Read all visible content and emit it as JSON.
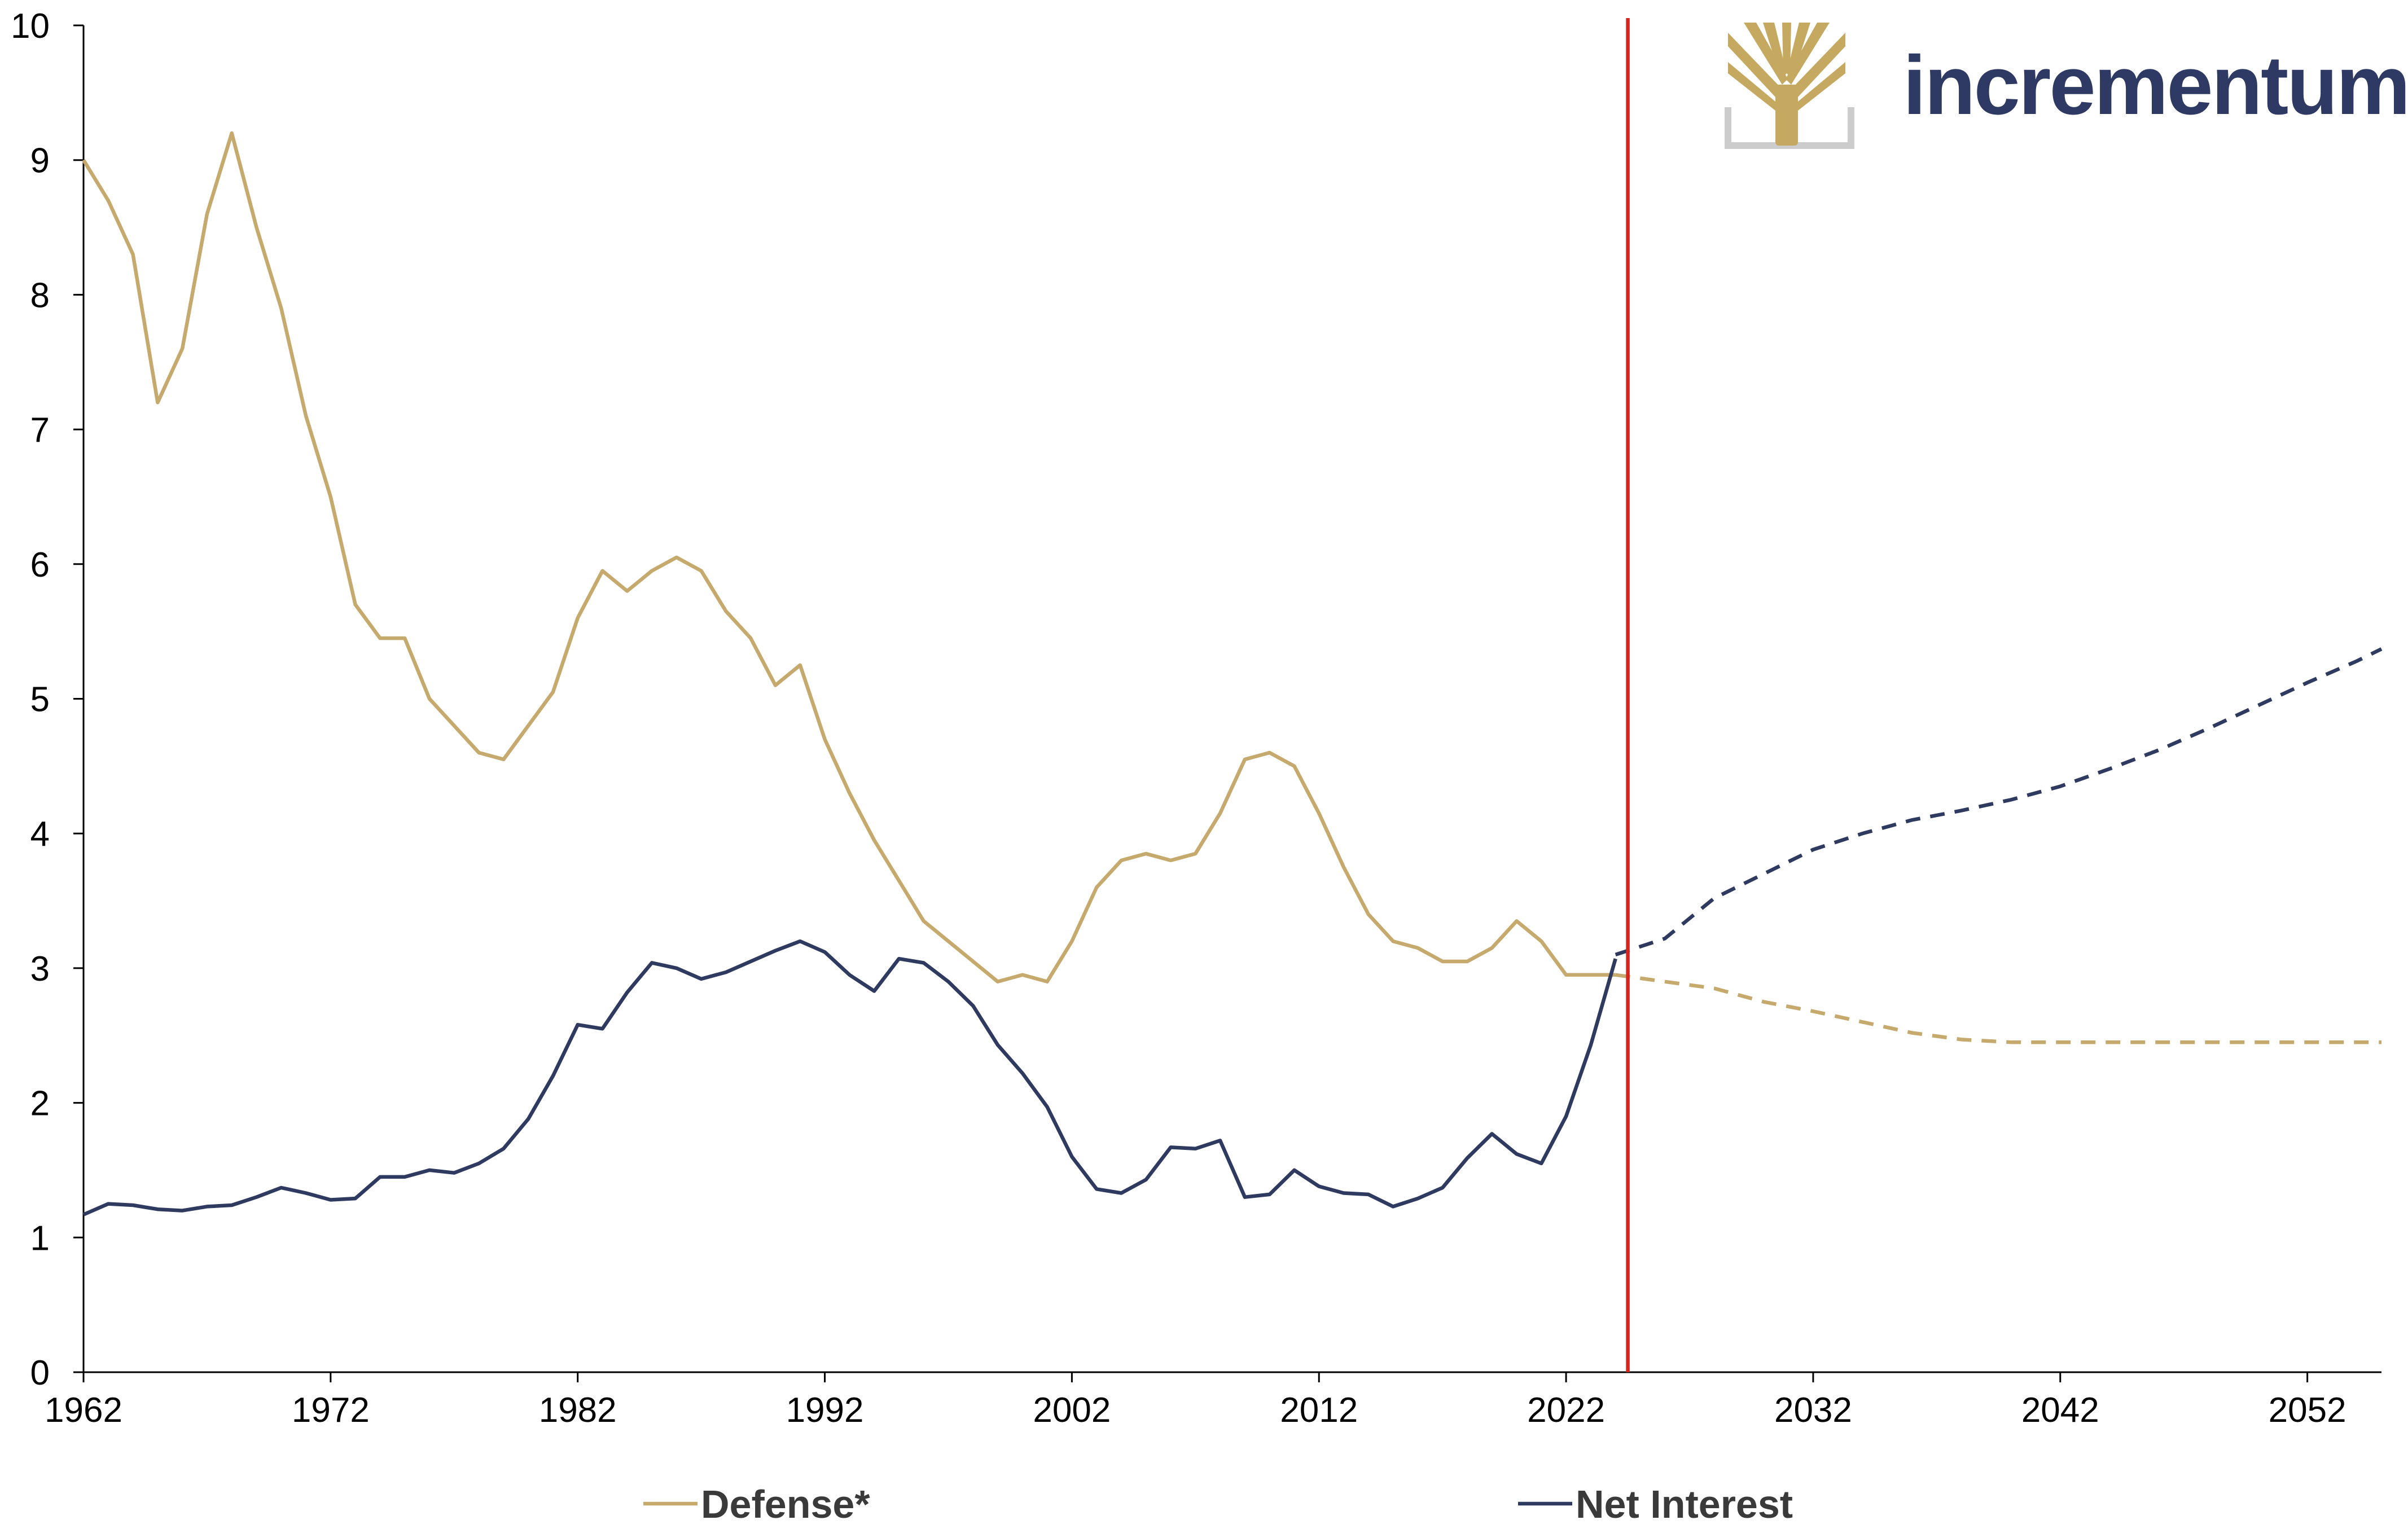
{
  "brand": {
    "name": "incrementum",
    "text_color": "#2e3a63",
    "logo_color": "#c6a960",
    "logo_frame_color": "#cccccc"
  },
  "colors": {
    "defense": "#c6a96c",
    "net_interest": "#2e3a5f",
    "divider": "#d9231d",
    "axis": "#000000"
  },
  "chart_data": {
    "type": "line",
    "title": "",
    "xlabel": "",
    "ylabel": "",
    "xlim": [
      1962,
      2055
    ],
    "ylim": [
      0,
      10
    ],
    "x_ticks": [
      1962,
      1972,
      1982,
      1992,
      2002,
      2012,
      2022,
      2032,
      2042,
      2052
    ],
    "y_ticks": [
      0,
      1,
      2,
      3,
      4,
      5,
      6,
      7,
      8,
      9,
      10
    ],
    "grid": false,
    "legend_position": "bottom",
    "forecast_start": 2024.5,
    "series": [
      {
        "name": "Defense*",
        "color": "#c6a96c",
        "historical": {
          "x": [
            1962,
            1963,
            1964,
            1965,
            1966,
            1967,
            1968,
            1969,
            1970,
            1971,
            1972,
            1973,
            1974,
            1975,
            1976,
            1977,
            1978,
            1979,
            1980,
            1981,
            1982,
            1983,
            1984,
            1985,
            1986,
            1987,
            1988,
            1989,
            1990,
            1991,
            1992,
            1993,
            1994,
            1995,
            1996,
            1997,
            1998,
            1999,
            2000,
            2001,
            2002,
            2003,
            2004,
            2005,
            2006,
            2007,
            2008,
            2009,
            2010,
            2011,
            2012,
            2013,
            2014,
            2015,
            2016,
            2017,
            2018,
            2019,
            2020,
            2021,
            2022,
            2023,
            2024
          ],
          "y": [
            9.0,
            8.7,
            8.3,
            7.2,
            7.6,
            8.6,
            9.2,
            8.5,
            7.9,
            7.1,
            6.5,
            5.7,
            5.45,
            5.45,
            5.0,
            4.8,
            4.6,
            4.55,
            4.8,
            5.05,
            5.6,
            5.95,
            5.8,
            5.95,
            6.05,
            5.95,
            5.65,
            5.45,
            5.1,
            5.25,
            4.7,
            4.3,
            3.95,
            3.65,
            3.35,
            3.2,
            3.05,
            2.9,
            2.95,
            2.9,
            3.2,
            3.6,
            3.8,
            3.85,
            3.8,
            3.85,
            4.15,
            4.55,
            4.6,
            4.5,
            4.15,
            3.75,
            3.4,
            3.2,
            3.15,
            3.05,
            3.05,
            3.15,
            3.35,
            3.2,
            2.95,
            2.95,
            2.95
          ]
        },
        "projection": {
          "x": [
            2024,
            2026,
            2028,
            2030,
            2032,
            2034,
            2036,
            2038,
            2040,
            2042,
            2044,
            2046,
            2048,
            2050,
            2052,
            2054,
            2055
          ],
          "y": [
            2.95,
            2.9,
            2.85,
            2.75,
            2.68,
            2.6,
            2.52,
            2.47,
            2.45,
            2.45,
            2.45,
            2.45,
            2.45,
            2.45,
            2.45,
            2.45,
            2.45
          ]
        }
      },
      {
        "name": "Net Interest",
        "color": "#2e3a5f",
        "historical": {
          "x": [
            1962,
            1963,
            1964,
            1965,
            1966,
            1967,
            1968,
            1969,
            1970,
            1971,
            1972,
            1973,
            1974,
            1975,
            1976,
            1977,
            1978,
            1979,
            1980,
            1981,
            1982,
            1983,
            1984,
            1985,
            1986,
            1987,
            1988,
            1989,
            1990,
            1991,
            1992,
            1993,
            1994,
            1995,
            1996,
            1997,
            1998,
            1999,
            2000,
            2001,
            2002,
            2003,
            2004,
            2005,
            2006,
            2007,
            2008,
            2009,
            2010,
            2011,
            2012,
            2013,
            2014,
            2015,
            2016,
            2017,
            2018,
            2019,
            2020,
            2021,
            2022,
            2023,
            2024
          ],
          "y": [
            1.17,
            1.25,
            1.24,
            1.21,
            1.2,
            1.23,
            1.24,
            1.3,
            1.37,
            1.33,
            1.28,
            1.29,
            1.45,
            1.45,
            1.5,
            1.48,
            1.55,
            1.66,
            1.88,
            2.2,
            2.58,
            2.55,
            2.82,
            3.04,
            3.0,
            2.92,
            2.97,
            3.05,
            3.13,
            3.2,
            3.12,
            2.95,
            2.83,
            3.07,
            3.04,
            2.9,
            2.72,
            2.43,
            2.22,
            1.97,
            1.6,
            1.36,
            1.33,
            1.43,
            1.67,
            1.66,
            1.72,
            1.3,
            1.32,
            1.5,
            1.38,
            1.33,
            1.32,
            1.23,
            1.29,
            1.37,
            1.59,
            1.77,
            1.62,
            1.55,
            1.9,
            2.43,
            3.07
          ]
        },
        "projection": {
          "x": [
            2024,
            2026,
            2028,
            2030,
            2032,
            2034,
            2036,
            2038,
            2040,
            2042,
            2044,
            2046,
            2048,
            2050,
            2052,
            2054,
            2055
          ],
          "y": [
            3.1,
            3.22,
            3.52,
            3.7,
            3.88,
            4.0,
            4.1,
            4.17,
            4.25,
            4.35,
            4.48,
            4.62,
            4.78,
            4.95,
            5.12,
            5.28,
            5.37
          ]
        }
      }
    ]
  }
}
